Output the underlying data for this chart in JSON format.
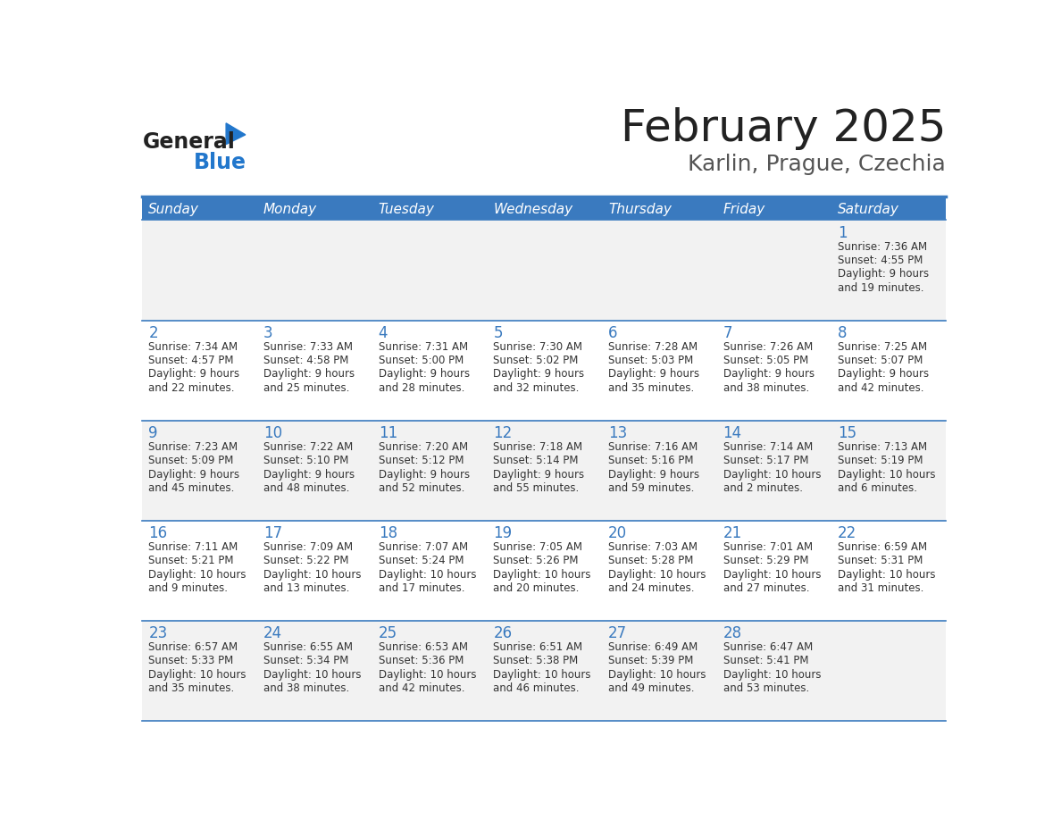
{
  "title": "February 2025",
  "subtitle": "Karlin, Prague, Czechia",
  "header_bg": "#3a7abf",
  "header_text_color": "#ffffff",
  "cell_bg_even": "#f2f2f2",
  "cell_bg_odd": "#ffffff",
  "day_headers": [
    "Sunday",
    "Monday",
    "Tuesday",
    "Wednesday",
    "Thursday",
    "Friday",
    "Saturday"
  ],
  "title_color": "#222222",
  "subtitle_color": "#555555",
  "day_num_color": "#3a7abf",
  "text_color": "#333333",
  "divider_color": "#3a7abf",
  "logo_general_color": "#222222",
  "logo_blue_color": "#2277cc",
  "weeks": [
    [
      {
        "day": null,
        "sunrise": null,
        "sunset": null,
        "daylight": null
      },
      {
        "day": null,
        "sunrise": null,
        "sunset": null,
        "daylight": null
      },
      {
        "day": null,
        "sunrise": null,
        "sunset": null,
        "daylight": null
      },
      {
        "day": null,
        "sunrise": null,
        "sunset": null,
        "daylight": null
      },
      {
        "day": null,
        "sunrise": null,
        "sunset": null,
        "daylight": null
      },
      {
        "day": null,
        "sunrise": null,
        "sunset": null,
        "daylight": null
      },
      {
        "day": 1,
        "sunrise": "7:36 AM",
        "sunset": "4:55 PM",
        "daylight": "9 hours\nand 19 minutes."
      }
    ],
    [
      {
        "day": 2,
        "sunrise": "7:34 AM",
        "sunset": "4:57 PM",
        "daylight": "9 hours\nand 22 minutes."
      },
      {
        "day": 3,
        "sunrise": "7:33 AM",
        "sunset": "4:58 PM",
        "daylight": "9 hours\nand 25 minutes."
      },
      {
        "day": 4,
        "sunrise": "7:31 AM",
        "sunset": "5:00 PM",
        "daylight": "9 hours\nand 28 minutes."
      },
      {
        "day": 5,
        "sunrise": "7:30 AM",
        "sunset": "5:02 PM",
        "daylight": "9 hours\nand 32 minutes."
      },
      {
        "day": 6,
        "sunrise": "7:28 AM",
        "sunset": "5:03 PM",
        "daylight": "9 hours\nand 35 minutes."
      },
      {
        "day": 7,
        "sunrise": "7:26 AM",
        "sunset": "5:05 PM",
        "daylight": "9 hours\nand 38 minutes."
      },
      {
        "day": 8,
        "sunrise": "7:25 AM",
        "sunset": "5:07 PM",
        "daylight": "9 hours\nand 42 minutes."
      }
    ],
    [
      {
        "day": 9,
        "sunrise": "7:23 AM",
        "sunset": "5:09 PM",
        "daylight": "9 hours\nand 45 minutes."
      },
      {
        "day": 10,
        "sunrise": "7:22 AM",
        "sunset": "5:10 PM",
        "daylight": "9 hours\nand 48 minutes."
      },
      {
        "day": 11,
        "sunrise": "7:20 AM",
        "sunset": "5:12 PM",
        "daylight": "9 hours\nand 52 minutes."
      },
      {
        "day": 12,
        "sunrise": "7:18 AM",
        "sunset": "5:14 PM",
        "daylight": "9 hours\nand 55 minutes."
      },
      {
        "day": 13,
        "sunrise": "7:16 AM",
        "sunset": "5:16 PM",
        "daylight": "9 hours\nand 59 minutes."
      },
      {
        "day": 14,
        "sunrise": "7:14 AM",
        "sunset": "5:17 PM",
        "daylight": "10 hours\nand 2 minutes."
      },
      {
        "day": 15,
        "sunrise": "7:13 AM",
        "sunset": "5:19 PM",
        "daylight": "10 hours\nand 6 minutes."
      }
    ],
    [
      {
        "day": 16,
        "sunrise": "7:11 AM",
        "sunset": "5:21 PM",
        "daylight": "10 hours\nand 9 minutes."
      },
      {
        "day": 17,
        "sunrise": "7:09 AM",
        "sunset": "5:22 PM",
        "daylight": "10 hours\nand 13 minutes."
      },
      {
        "day": 18,
        "sunrise": "7:07 AM",
        "sunset": "5:24 PM",
        "daylight": "10 hours\nand 17 minutes."
      },
      {
        "day": 19,
        "sunrise": "7:05 AM",
        "sunset": "5:26 PM",
        "daylight": "10 hours\nand 20 minutes."
      },
      {
        "day": 20,
        "sunrise": "7:03 AM",
        "sunset": "5:28 PM",
        "daylight": "10 hours\nand 24 minutes."
      },
      {
        "day": 21,
        "sunrise": "7:01 AM",
        "sunset": "5:29 PM",
        "daylight": "10 hours\nand 27 minutes."
      },
      {
        "day": 22,
        "sunrise": "6:59 AM",
        "sunset": "5:31 PM",
        "daylight": "10 hours\nand 31 minutes."
      }
    ],
    [
      {
        "day": 23,
        "sunrise": "6:57 AM",
        "sunset": "5:33 PM",
        "daylight": "10 hours\nand 35 minutes."
      },
      {
        "day": 24,
        "sunrise": "6:55 AM",
        "sunset": "5:34 PM",
        "daylight": "10 hours\nand 38 minutes."
      },
      {
        "day": 25,
        "sunrise": "6:53 AM",
        "sunset": "5:36 PM",
        "daylight": "10 hours\nand 42 minutes."
      },
      {
        "day": 26,
        "sunrise": "6:51 AM",
        "sunset": "5:38 PM",
        "daylight": "10 hours\nand 46 minutes."
      },
      {
        "day": 27,
        "sunrise": "6:49 AM",
        "sunset": "5:39 PM",
        "daylight": "10 hours\nand 49 minutes."
      },
      {
        "day": 28,
        "sunrise": "6:47 AM",
        "sunset": "5:41 PM",
        "daylight": "10 hours\nand 53 minutes."
      },
      {
        "day": null,
        "sunrise": null,
        "sunset": null,
        "daylight": null
      }
    ]
  ]
}
